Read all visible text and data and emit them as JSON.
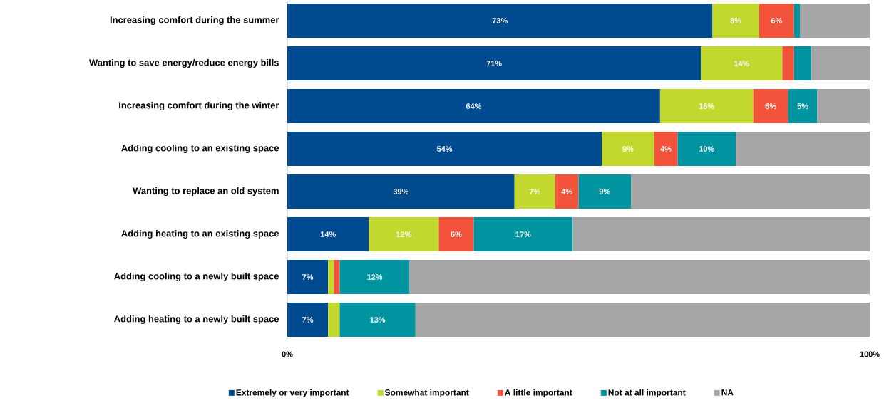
{
  "chart_data": {
    "type": "bar",
    "orientation": "horizontal",
    "stacked": true,
    "categories": [
      "Increasing comfort during the summer",
      "Wanting to save energy/reduce energy bills",
      "Increasing comfort during the winter",
      "Adding cooling to an existing space",
      "Wanting to replace an old system",
      "Adding heating to an existing space",
      "Adding cooling to a newly built space",
      "Adding heating to a newly built space"
    ],
    "series": [
      {
        "name": "Extremely or very important",
        "color": "#004a8f",
        "values": [
          73,
          71,
          64,
          54,
          39,
          14,
          7,
          7
        ],
        "value_labels": [
          "73%",
          "71%",
          "64%",
          "54%",
          "39%",
          "14%",
          "7%",
          "7%"
        ]
      },
      {
        "name": "Somewhat important",
        "color": "#c3d82e",
        "values": [
          8,
          14,
          16,
          9,
          7,
          12,
          1,
          2
        ],
        "value_labels": [
          "8%",
          "14%",
          "16%",
          "9%",
          "7%",
          "12%",
          null,
          null
        ]
      },
      {
        "name": "A little important",
        "color": "#f4533b",
        "values": [
          6,
          2,
          6,
          4,
          4,
          6,
          1,
          null
        ],
        "value_labels": [
          "6%",
          null,
          "6%",
          "4%",
          "4%",
          "6%",
          null,
          null
        ]
      },
      {
        "name": "Not at all important",
        "color": "#0093a0",
        "values": [
          1,
          3,
          5,
          10,
          9,
          17,
          12,
          13
        ],
        "value_labels": [
          null,
          null,
          "5%",
          "10%",
          "9%",
          "17%",
          "12%",
          "13%"
        ]
      },
      {
        "name": "NA",
        "color": "#a6a6a6",
        "values": [
          12,
          10,
          9,
          23,
          41,
          51,
          79,
          78
        ]
      }
    ],
    "xlim": [
      0,
      100
    ],
    "xticks": [
      {
        "value": 0,
        "label": "0%"
      },
      {
        "value": 100,
        "label": "100%"
      }
    ],
    "legend": "bottom"
  }
}
